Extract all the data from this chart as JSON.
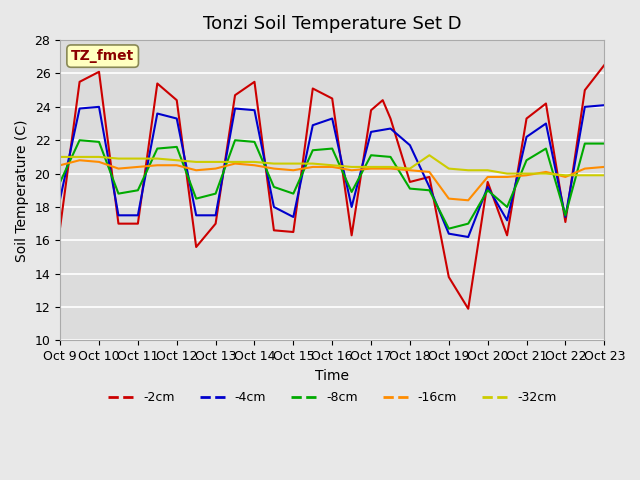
{
  "title": "Tonzi Soil Temperature Set D",
  "xlabel": "Time",
  "ylabel": "Soil Temperature (C)",
  "ylim": [
    10,
    28
  ],
  "xlim": [
    0,
    14
  ],
  "xtick_labels": [
    "Oct 9",
    "Oct 10",
    "Oct 11",
    "Oct 12",
    "Oct 13",
    "Oct 14",
    "Oct 15",
    "Oct 16",
    "Oct 17",
    "Oct 18",
    "Oct 19",
    "Oct 20",
    "Oct 21",
    "Oct 22",
    "Oct 23"
  ],
  "ytick_values": [
    10,
    12,
    14,
    16,
    18,
    20,
    22,
    24,
    26,
    28
  ],
  "annotation_text": "TZ_fmet",
  "annotation_color": "#8B0000",
  "annotation_bg": "#FFFFC0",
  "series": {
    "-2cm": {
      "color": "#CC0000",
      "linewidth": 1.5,
      "x": [
        0,
        0.5,
        1.0,
        1.5,
        2.0,
        2.5,
        3.0,
        3.5,
        4.0,
        4.5,
        5.0,
        5.5,
        6.0,
        6.5,
        7.0,
        7.5,
        8.0,
        8.3,
        8.5,
        9.0,
        9.5,
        10.0,
        10.5,
        11.0,
        11.5,
        12.0,
        12.5,
        13.0,
        13.5,
        14.0
      ],
      "y": [
        16.8,
        25.5,
        26.1,
        17.0,
        17.0,
        25.4,
        24.4,
        15.6,
        17.0,
        24.7,
        25.5,
        16.6,
        16.5,
        25.1,
        24.5,
        16.3,
        23.8,
        24.4,
        23.3,
        19.5,
        19.8,
        13.8,
        11.9,
        19.5,
        16.3,
        23.3,
        24.2,
        17.1,
        25.0,
        26.5
      ]
    },
    "-4cm": {
      "color": "#0000CC",
      "linewidth": 1.5,
      "x": [
        0,
        0.5,
        1.0,
        1.5,
        2.0,
        2.5,
        3.0,
        3.5,
        4.0,
        4.5,
        5.0,
        5.5,
        6.0,
        6.5,
        7.0,
        7.5,
        8.0,
        8.5,
        9.0,
        9.5,
        10.0,
        10.5,
        11.0,
        11.5,
        12.0,
        12.5,
        13.0,
        13.5,
        14.0
      ],
      "y": [
        18.5,
        23.9,
        24.0,
        17.5,
        17.5,
        23.6,
        23.3,
        17.5,
        17.5,
        23.9,
        23.8,
        18.0,
        17.4,
        22.9,
        23.3,
        18.0,
        22.5,
        22.7,
        21.7,
        19.2,
        16.4,
        16.2,
        19.2,
        17.2,
        22.2,
        23.0,
        17.4,
        24.0,
        24.1
      ]
    },
    "-8cm": {
      "color": "#00AA00",
      "linewidth": 1.5,
      "x": [
        0,
        0.5,
        1.0,
        1.5,
        2.0,
        2.5,
        3.0,
        3.5,
        4.0,
        4.5,
        5.0,
        5.5,
        6.0,
        6.5,
        7.0,
        7.5,
        8.0,
        8.5,
        9.0,
        9.5,
        10.0,
        10.5,
        11.0,
        11.5,
        12.0,
        12.5,
        13.0,
        13.5,
        14.0
      ],
      "y": [
        19.5,
        22.0,
        21.9,
        18.8,
        19.0,
        21.5,
        21.6,
        18.5,
        18.8,
        22.0,
        21.9,
        19.2,
        18.8,
        21.4,
        21.5,
        18.9,
        21.1,
        21.0,
        19.1,
        19.0,
        16.7,
        17.0,
        19.0,
        18.0,
        20.8,
        21.5,
        17.5,
        21.8,
        21.8
      ]
    },
    "-16cm": {
      "color": "#FF8C00",
      "linewidth": 1.5,
      "x": [
        0,
        0.5,
        1.0,
        1.5,
        2.0,
        2.5,
        3.0,
        3.5,
        4.0,
        4.5,
        5.0,
        5.5,
        6.0,
        6.5,
        7.0,
        7.5,
        8.0,
        8.5,
        9.0,
        9.5,
        10.0,
        10.5,
        11.0,
        11.5,
        12.0,
        12.5,
        13.0,
        13.5,
        14.0
      ],
      "y": [
        20.5,
        20.8,
        20.7,
        20.3,
        20.4,
        20.5,
        20.5,
        20.2,
        20.3,
        20.6,
        20.5,
        20.3,
        20.2,
        20.4,
        20.4,
        20.2,
        20.3,
        20.3,
        20.2,
        20.1,
        18.5,
        18.4,
        19.8,
        19.8,
        19.9,
        20.1,
        19.8,
        20.3,
        20.4
      ]
    },
    "-32cm": {
      "color": "#CCCC00",
      "linewidth": 1.5,
      "x": [
        0,
        0.5,
        1.0,
        1.5,
        2.0,
        2.5,
        3.0,
        3.5,
        4.0,
        4.5,
        5.0,
        5.5,
        6.0,
        6.5,
        7.0,
        7.5,
        8.0,
        8.5,
        9.0,
        9.5,
        10.0,
        10.5,
        11.0,
        11.5,
        12.0,
        12.5,
        13.0,
        13.5,
        14.0
      ],
      "y": [
        21.0,
        21.0,
        21.0,
        20.9,
        20.9,
        20.9,
        20.8,
        20.7,
        20.7,
        20.7,
        20.7,
        20.6,
        20.6,
        20.6,
        20.5,
        20.4,
        20.4,
        20.4,
        20.3,
        21.1,
        20.3,
        20.2,
        20.2,
        20.0,
        20.0,
        20.0,
        19.9,
        19.9,
        19.9
      ]
    }
  },
  "bg_color": "#E8E8E8",
  "plot_bg_color": "#DCDCDC",
  "grid_color": "#FFFFFF",
  "title_fontsize": 13,
  "axis_label_fontsize": 10,
  "tick_fontsize": 9
}
